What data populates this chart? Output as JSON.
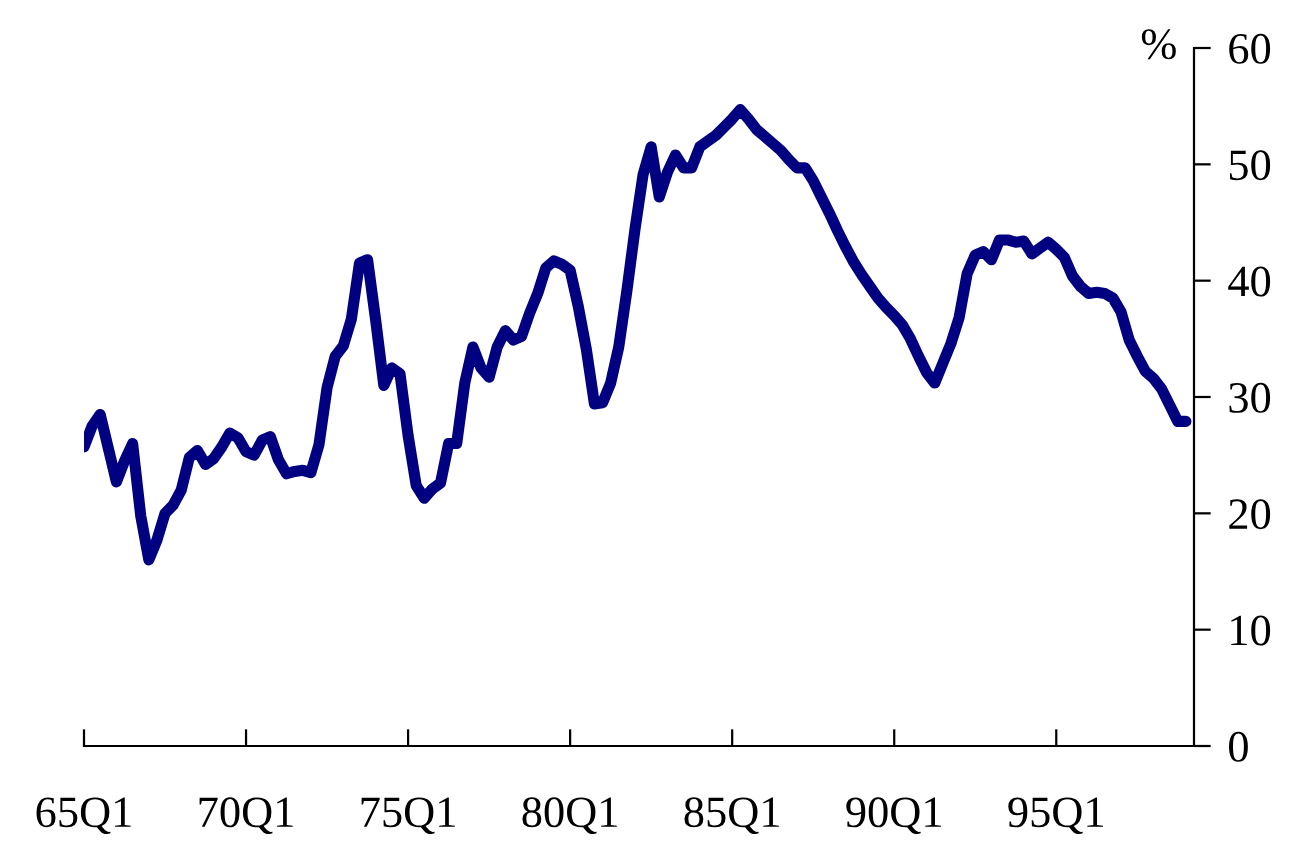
{
  "chart_data": {
    "type": "line",
    "ylabel": "%",
    "categories": [
      "65Q1",
      null,
      null,
      null,
      null,
      null,
      null,
      null,
      null,
      null,
      null,
      null,
      null,
      null,
      null,
      null,
      null,
      null,
      null,
      null,
      "70Q1",
      null,
      null,
      null,
      null,
      null,
      null,
      null,
      null,
      null,
      null,
      null,
      null,
      null,
      null,
      null,
      null,
      null,
      null,
      null,
      "75Q1",
      null,
      null,
      null,
      null,
      null,
      null,
      null,
      null,
      null,
      null,
      null,
      null,
      null,
      null,
      null,
      null,
      null,
      null,
      null,
      "80Q1",
      null,
      null,
      null,
      null,
      null,
      null,
      null,
      null,
      null,
      null,
      null,
      null,
      null,
      null,
      null,
      null,
      null,
      null,
      null,
      "85Q1",
      null,
      null,
      null,
      null,
      null,
      null,
      null,
      null,
      null,
      null,
      null,
      null,
      null,
      null,
      null,
      null,
      null,
      null,
      null,
      "90Q1",
      null,
      null,
      null,
      null,
      null,
      null,
      null,
      null,
      null,
      null,
      null,
      null,
      null,
      null,
      null,
      null,
      null,
      null,
      null,
      "95Q1",
      null,
      null,
      null,
      null,
      null,
      null,
      null,
      null,
      null,
      null,
      null,
      null,
      null,
      null,
      null,
      null
    ],
    "values": [
      25.7,
      27.5,
      28.5,
      25.6,
      22.7,
      24.5,
      26.0,
      19.8,
      16.0,
      17.7,
      20.0,
      20.7,
      22.0,
      24.8,
      25.4,
      24.2,
      24.7,
      25.7,
      26.9,
      26.5,
      25.3,
      25.0,
      26.3,
      26.6,
      24.6,
      23.4,
      23.6,
      23.7,
      23.5,
      25.9,
      30.8,
      33.5,
      34.4,
      36.7,
      41.5,
      41.8,
      36.6,
      31.0,
      32.5,
      32.0,
      26.7,
      22.4,
      21.3,
      22.1,
      22.6,
      26.0,
      26.0,
      31.2,
      34.3,
      32.5,
      31.7,
      34.3,
      35.7,
      34.9,
      35.2,
      37.2,
      38.9,
      41.1,
      41.7,
      41.4,
      40.9,
      37.8,
      34.1,
      29.4,
      29.5,
      31.2,
      34.3,
      39.1,
      44.4,
      49.1,
      51.5,
      47.2,
      49.3,
      50.8,
      49.7,
      49.7,
      51.5,
      52.0,
      52.5,
      53.2,
      53.9,
      54.7,
      53.9,
      53.0,
      52.4,
      51.8,
      51.2,
      50.4,
      49.7,
      49.7,
      48.6,
      47.2,
      45.8,
      44.3,
      42.9,
      41.6,
      40.5,
      39.5,
      38.5,
      37.7,
      37.0,
      36.2,
      35.0,
      33.5,
      32.1,
      31.2,
      32.9,
      34.6,
      36.8,
      40.6,
      42.2,
      42.5,
      41.8,
      43.5,
      43.5,
      43.3,
      43.4,
      42.3,
      42.8,
      43.3,
      42.7,
      42.0,
      40.4,
      39.5,
      38.9,
      39.0,
      38.9,
      38.5,
      37.3,
      34.9,
      33.5,
      32.2,
      31.6,
      30.7,
      29.3,
      27.9,
      27.9
    ],
    "color": "#000080",
    "ylim": [
      0,
      60
    ],
    "yticks": [
      0,
      10,
      20,
      30,
      40,
      50,
      60
    ],
    "grid": false,
    "legend": false,
    "marker": "none",
    "line_style": "solid"
  }
}
